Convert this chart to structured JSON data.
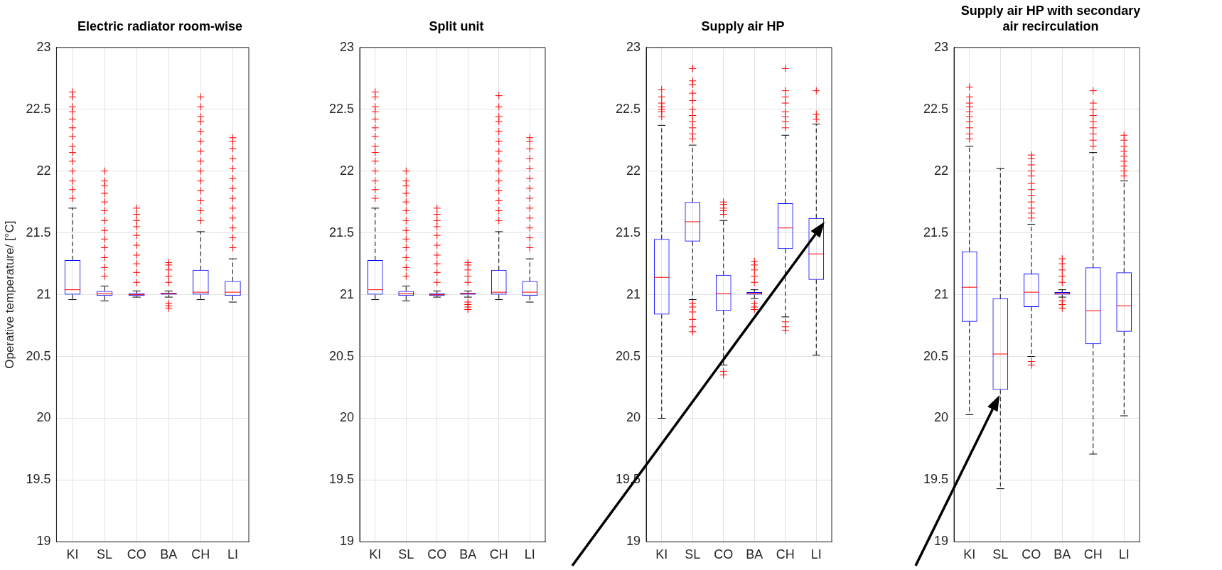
{
  "chart_data": [
    {
      "type": "box",
      "title": "Electric radiator room-wise",
      "ylabel": "Operative temperature/ [°C]",
      "categories": [
        "KI",
        "SL",
        "CO",
        "BA",
        "CH",
        "LI"
      ],
      "ylim": [
        19,
        23
      ],
      "yticks": [
        19,
        19.5,
        20,
        20.5,
        21,
        21.5,
        22,
        22.5,
        23
      ],
      "grid": true,
      "marker": "cross",
      "series": [
        {
          "color": "#0000ff",
          "boxes": [
            {
              "low": 20.96,
              "q1": 21.0,
              "median": 21.04,
              "q3": 21.28,
              "high": 21.7,
              "outliers": [
                21.78,
                21.85,
                21.92,
                22.0,
                22.08,
                22.15,
                22.2,
                22.28,
                22.35,
                22.42,
                22.48,
                22.52,
                22.6,
                22.64
              ]
            },
            {
              "low": 20.95,
              "q1": 20.99,
              "median": 21.01,
              "q3": 21.03,
              "high": 21.07,
              "outliers": [
                21.15,
                21.22,
                21.3,
                21.38,
                21.45,
                21.52,
                21.6,
                21.68,
                21.75,
                21.82,
                21.88,
                21.92,
                22.0
              ]
            },
            {
              "low": 20.98,
              "q1": 20.99,
              "median": 21.0,
              "q3": 21.01,
              "high": 21.03,
              "outliers": [
                21.1,
                21.18,
                21.25,
                21.32,
                21.4,
                21.48,
                21.55,
                21.6,
                21.65,
                21.7
              ]
            },
            {
              "low": 20.98,
              "q1": 21.0,
              "median": 21.01,
              "q3": 21.015,
              "high": 21.03,
              "outliers": [
                20.89,
                20.91,
                20.93,
                21.1,
                21.15,
                21.2,
                21.24,
                21.26
              ]
            },
            {
              "low": 20.96,
              "q1": 21.0,
              "median": 21.02,
              "q3": 21.2,
              "high": 21.51,
              "outliers": [
                21.6,
                21.68,
                21.76,
                21.84,
                21.92,
                22.0,
                22.08,
                22.16,
                22.24,
                22.32,
                22.4,
                22.44,
                22.52,
                22.6
              ]
            },
            {
              "low": 20.94,
              "q1": 20.99,
              "median": 21.02,
              "q3": 21.11,
              "high": 21.29,
              "outliers": [
                21.38,
                21.46,
                21.54,
                21.62,
                21.7,
                21.78,
                21.86,
                21.94,
                22.02,
                22.1,
                22.18,
                22.24,
                22.27
              ]
            }
          ]
        }
      ]
    },
    {
      "type": "box",
      "title": "Split unit",
      "categories": [
        "KI",
        "SL",
        "CO",
        "BA",
        "CH",
        "LI"
      ],
      "ylim": [
        19,
        23
      ],
      "yticks": [
        19,
        19.5,
        20,
        20.5,
        21,
        21.5,
        22,
        22.5,
        23
      ],
      "grid": true,
      "marker": "cross",
      "series": [
        {
          "color": "#0000ff",
          "boxes": [
            {
              "low": 20.96,
              "q1": 21.0,
              "median": 21.04,
              "q3": 21.28,
              "high": 21.7,
              "outliers": [
                21.78,
                21.85,
                21.92,
                22.0,
                22.08,
                22.15,
                22.2,
                22.28,
                22.35,
                22.42,
                22.48,
                22.52,
                22.6,
                22.64
              ]
            },
            {
              "low": 20.95,
              "q1": 20.99,
              "median": 21.01,
              "q3": 21.03,
              "high": 21.07,
              "outliers": [
                21.15,
                21.22,
                21.3,
                21.38,
                21.45,
                21.52,
                21.6,
                21.68,
                21.75,
                21.82,
                21.88,
                21.92,
                22.0
              ]
            },
            {
              "low": 20.98,
              "q1": 20.99,
              "median": 21.0,
              "q3": 21.01,
              "high": 21.03,
              "outliers": [
                21.1,
                21.18,
                21.25,
                21.32,
                21.4,
                21.48,
                21.55,
                21.6,
                21.65,
                21.7
              ]
            },
            {
              "low": 20.98,
              "q1": 21.0,
              "median": 21.01,
              "q3": 21.015,
              "high": 21.03,
              "outliers": [
                20.88,
                20.9,
                20.92,
                20.94,
                21.1,
                21.15,
                21.2,
                21.24,
                21.26
              ]
            },
            {
              "low": 20.96,
              "q1": 21.0,
              "median": 21.02,
              "q3": 21.2,
              "high": 21.51,
              "outliers": [
                21.6,
                21.68,
                21.76,
                21.84,
                21.92,
                22.0,
                22.08,
                22.16,
                22.24,
                22.32,
                22.4,
                22.44,
                22.52,
                22.61
              ]
            },
            {
              "low": 20.94,
              "q1": 20.99,
              "median": 21.02,
              "q3": 21.11,
              "high": 21.29,
              "outliers": [
                21.38,
                21.46,
                21.54,
                21.62,
                21.7,
                21.78,
                21.86,
                21.94,
                22.02,
                22.1,
                22.18,
                22.24,
                22.27
              ]
            }
          ]
        }
      ]
    },
    {
      "type": "box",
      "title": "Supply air HP",
      "categories": [
        "KI",
        "SL",
        "CO",
        "BA",
        "CH",
        "LI"
      ],
      "ylim": [
        19,
        23
      ],
      "yticks": [
        19,
        19.5,
        20,
        20.5,
        21,
        21.5,
        22,
        22.5,
        23
      ],
      "grid": true,
      "marker": "cross",
      "series": [
        {
          "color": "#0000ff",
          "boxes": [
            {
              "low": 20.0,
              "q1": 20.84,
              "median": 21.14,
              "q3": 21.45,
              "high": 22.37,
              "outliers": [
                22.44,
                22.48,
                22.5,
                22.52,
                22.55,
                22.6,
                22.66
              ]
            },
            {
              "low": 20.96,
              "q1": 21.43,
              "median": 21.59,
              "q3": 21.75,
              "high": 22.21,
              "outliers": [
                20.7,
                20.74,
                20.8,
                20.86,
                20.9,
                20.93,
                22.26,
                22.3,
                22.35,
                22.4,
                22.45,
                22.5,
                22.57,
                22.63,
                22.7,
                22.73,
                22.83
              ]
            },
            {
              "low": 20.43,
              "q1": 20.87,
              "median": 21.01,
              "q3": 21.16,
              "high": 21.6,
              "outliers": [
                20.35,
                20.38,
                21.65,
                21.68,
                21.7,
                21.73,
                21.75
              ]
            },
            {
              "low": 20.97,
              "q1": 21.0,
              "median": 21.01,
              "q3": 21.02,
              "high": 21.04,
              "outliers": [
                20.88,
                20.9,
                20.93,
                21.1,
                21.15,
                21.2,
                21.24,
                21.27
              ]
            },
            {
              "low": 20.82,
              "q1": 21.37,
              "median": 21.54,
              "q3": 21.74,
              "high": 22.29,
              "outliers": [
                20.71,
                20.74,
                20.78,
                22.35,
                22.4,
                22.44,
                22.48,
                22.55,
                22.6,
                22.65,
                22.83
              ]
            },
            {
              "low": 20.51,
              "q1": 21.12,
              "median": 21.33,
              "q3": 21.62,
              "high": 22.38,
              "outliers": [
                22.42,
                22.46,
                22.65
              ]
            }
          ]
        }
      ]
    },
    {
      "type": "box",
      "title": "Supply air HP with secondary air recirculation",
      "categories": [
        "KI",
        "SL",
        "CO",
        "BA",
        "CH",
        "LI"
      ],
      "ylim": [
        19,
        23
      ],
      "yticks": [
        19,
        19.5,
        20,
        20.5,
        21,
        21.5,
        22,
        22.5,
        23
      ],
      "grid": true,
      "marker": "cross",
      "series": [
        {
          "color": "#0000ff",
          "boxes": [
            {
              "low": 20.03,
              "q1": 20.78,
              "median": 21.06,
              "q3": 21.35,
              "high": 22.2,
              "outliers": [
                22.26,
                22.3,
                22.35,
                22.4,
                22.44,
                22.48,
                22.52,
                22.55,
                22.6,
                22.68
              ]
            },
            {
              "low": 19.43,
              "q1": 20.23,
              "median": 20.52,
              "q3": 20.97,
              "high": 22.02
            },
            {
              "low": 20.5,
              "q1": 20.9,
              "median": 21.02,
              "q3": 21.17,
              "high": 21.57,
              "outliers": [
                20.43,
                20.46,
                21.62,
                21.66,
                21.7,
                21.75,
                21.8,
                21.85,
                21.9,
                21.96,
                22.0,
                22.05,
                22.1,
                22.13
              ]
            },
            {
              "low": 20.98,
              "q1": 21.0,
              "median": 21.01,
              "q3": 21.02,
              "high": 21.04,
              "outliers": [
                20.89,
                20.92,
                20.95,
                21.1,
                21.15,
                21.2,
                21.25,
                21.29
              ]
            },
            {
              "low": 19.71,
              "q1": 20.6,
              "median": 20.87,
              "q3": 21.22,
              "high": 22.15,
              "outliers": [
                22.2,
                22.25,
                22.3,
                22.35,
                22.4,
                22.45,
                22.5,
                22.55,
                22.65
              ]
            },
            {
              "low": 20.02,
              "q1": 20.7,
              "median": 20.91,
              "q3": 21.18,
              "high": 21.92,
              "outliers": [
                21.96,
                22.0,
                22.04,
                22.08,
                22.12,
                22.16,
                22.2,
                22.25,
                22.29
              ]
            }
          ]
        }
      ]
    }
  ]
}
